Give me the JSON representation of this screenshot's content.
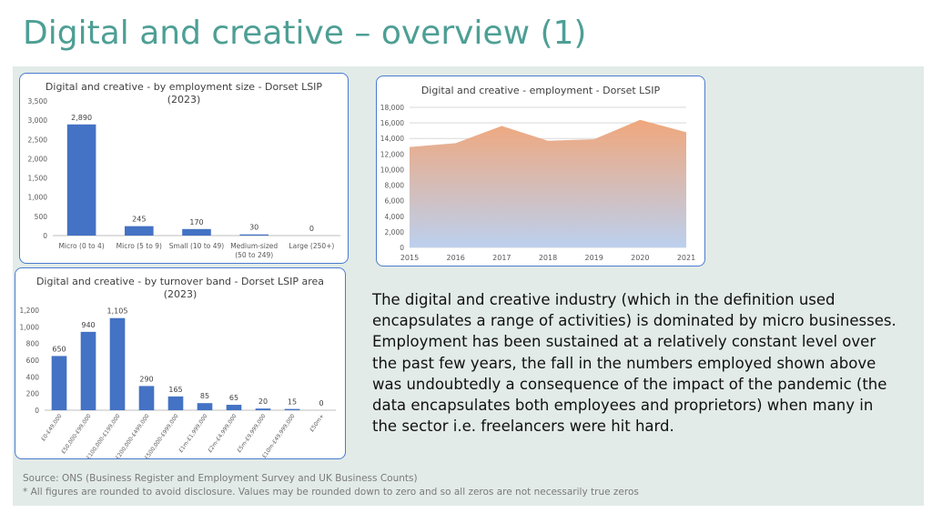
{
  "slide": {
    "title": "Digital and creative – overview (1)",
    "body_text": "The digital and creative industry (which in the definition used encapsulates a range of activities) is dominated by micro businesses. Employment has been sustained at a relatively constant level over the past few years, the fall in the numbers employed shown above was undoubtedly a consequence of the impact of the pandemic (the data encapsulates both employees and proprietors) when many in the sector i.e. freelancers were hit hard.",
    "source": "Source: ONS (Business Register and Employment Survey and UK Business Counts)",
    "footnote": "* All figures are rounded to avoid disclosure. Values may be rounded down to zero and so all zeros are not necessarily true zeros"
  },
  "colors": {
    "title": "#4e9f95",
    "panel": "#e2ebe8",
    "bar": "#4472c4",
    "card_border": "#4a7bd0",
    "area_top": "#f0a77c",
    "area_bottom": "#bcd0ee"
  },
  "chart_data": [
    {
      "id": "size",
      "type": "bar",
      "title_line1": "Digital and creative - by employment size - Dorset LSIP",
      "title_line2": "(2023)",
      "categories": [
        "Micro (0 to 4)",
        "Micro (5 to 9)",
        "Small (10 to 49)",
        "Medium-sized (50 to 249)",
        "Large (250+)"
      ],
      "values": [
        2890,
        245,
        170,
        30,
        0
      ],
      "data_labels": [
        "2,890",
        "245",
        "170",
        "30",
        "0"
      ],
      "ylim": [
        0,
        3500
      ],
      "yticks": [
        0,
        500,
        1000,
        1500,
        2000,
        2500,
        3000,
        3500
      ],
      "ytick_labels": [
        "0",
        "500",
        "1,000",
        "1,500",
        "2,000",
        "2,500",
        "3,000",
        "3,500"
      ],
      "grid": false
    },
    {
      "id": "emp",
      "type": "area",
      "title": "Digital and creative - employment - Dorset LSIP",
      "x": [
        "2015",
        "2016",
        "2017",
        "2018",
        "2019",
        "2020",
        "2021"
      ],
      "values": [
        12900,
        13400,
        15600,
        13700,
        13900,
        16400,
        14800
      ],
      "ylim": [
        0,
        18000
      ],
      "yticks": [
        0,
        2000,
        4000,
        6000,
        8000,
        10000,
        12000,
        14000,
        16000,
        18000
      ],
      "ytick_labels": [
        "0",
        "2,000",
        "4,000",
        "6,000",
        "8,000",
        "10,000",
        "12,000",
        "14,000",
        "16,000",
        "18,000"
      ],
      "grid": true
    },
    {
      "id": "turn",
      "type": "bar",
      "title_line1": "Digital and creative - by turnover band - Dorset LSIP area",
      "title_line2": "(2023)",
      "categories": [
        "£0-£49,000",
        "£50,000-£99,000",
        "£100,000-£199,000",
        "£200,000-£499,000",
        "£500,000-£999,000",
        "£1m-£1,999,000",
        "£2m-£4,999,000",
        "£5m-£9,999,000",
        "£10m-£49,999,000",
        "£50m+"
      ],
      "values": [
        650,
        940,
        1105,
        290,
        165,
        85,
        65,
        20,
        15,
        0
      ],
      "data_labels": [
        "650",
        "940",
        "1,105",
        "290",
        "165",
        "85",
        "65",
        "20",
        "15",
        "0"
      ],
      "ylim": [
        0,
        1200
      ],
      "yticks": [
        0,
        200,
        400,
        600,
        800,
        1000,
        1200
      ],
      "ytick_labels": [
        "0",
        "200",
        "400",
        "600",
        "800",
        "1,000",
        "1,200"
      ],
      "grid": false
    }
  ]
}
